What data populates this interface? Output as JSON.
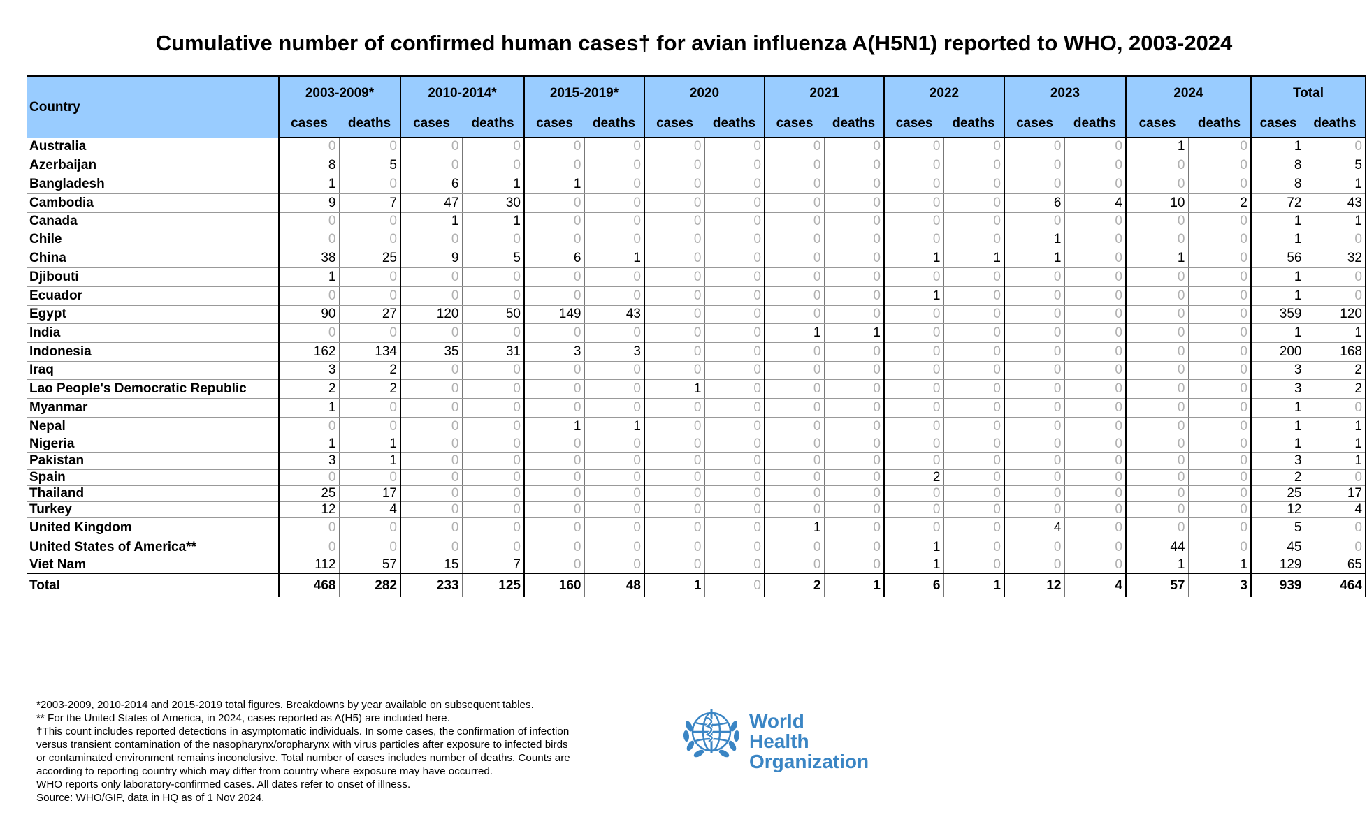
{
  "title": "Cumulative number of confirmed human cases† for avian influenza A(H5N1) reported to WHO, 2003-2024",
  "table": {
    "country_header": "Country",
    "periods": [
      "2003-2009*",
      "2010-2014*",
      "2015-2019*",
      "2020",
      "2021",
      "2022",
      "2023",
      "2024",
      "Total"
    ],
    "cases_label": "cases",
    "deaths_label": "deaths",
    "rows": [
      {
        "country": "Australia",
        "values": [
          0,
          0,
          0,
          0,
          0,
          0,
          0,
          0,
          0,
          0,
          0,
          0,
          0,
          0,
          1,
          0,
          1,
          0
        ]
      },
      {
        "country": "Azerbaijan",
        "values": [
          8,
          5,
          0,
          0,
          0,
          0,
          0,
          0,
          0,
          0,
          0,
          0,
          0,
          0,
          0,
          0,
          8,
          5
        ]
      },
      {
        "country": "Bangladesh",
        "values": [
          1,
          0,
          6,
          1,
          1,
          0,
          0,
          0,
          0,
          0,
          0,
          0,
          0,
          0,
          0,
          0,
          8,
          1
        ]
      },
      {
        "country": "Cambodia",
        "values": [
          9,
          7,
          47,
          30,
          0,
          0,
          0,
          0,
          0,
          0,
          0,
          0,
          6,
          4,
          10,
          2,
          72,
          43
        ]
      },
      {
        "country": "Canada",
        "values": [
          0,
          0,
          1,
          1,
          0,
          0,
          0,
          0,
          0,
          0,
          0,
          0,
          0,
          0,
          0,
          0,
          1,
          1
        ]
      },
      {
        "country": "Chile",
        "values": [
          0,
          0,
          0,
          0,
          0,
          0,
          0,
          0,
          0,
          0,
          0,
          0,
          1,
          0,
          0,
          0,
          1,
          0
        ]
      },
      {
        "country": "China",
        "values": [
          38,
          25,
          9,
          5,
          6,
          1,
          0,
          0,
          0,
          0,
          1,
          1,
          1,
          0,
          1,
          0,
          56,
          32
        ]
      },
      {
        "country": "Djibouti",
        "values": [
          1,
          0,
          0,
          0,
          0,
          0,
          0,
          0,
          0,
          0,
          0,
          0,
          0,
          0,
          0,
          0,
          1,
          0
        ]
      },
      {
        "country": "Ecuador",
        "values": [
          0,
          0,
          0,
          0,
          0,
          0,
          0,
          0,
          0,
          0,
          1,
          0,
          0,
          0,
          0,
          0,
          1,
          0
        ]
      },
      {
        "country": "Egypt",
        "values": [
          90,
          27,
          120,
          50,
          149,
          43,
          0,
          0,
          0,
          0,
          0,
          0,
          0,
          0,
          0,
          0,
          359,
          120
        ]
      },
      {
        "country": "India",
        "values": [
          0,
          0,
          0,
          0,
          0,
          0,
          0,
          0,
          1,
          1,
          0,
          0,
          0,
          0,
          0,
          0,
          1,
          1
        ]
      },
      {
        "country": "Indonesia",
        "values": [
          162,
          134,
          35,
          31,
          3,
          3,
          0,
          0,
          0,
          0,
          0,
          0,
          0,
          0,
          0,
          0,
          200,
          168
        ]
      },
      {
        "country": "Iraq",
        "values": [
          3,
          2,
          0,
          0,
          0,
          0,
          0,
          0,
          0,
          0,
          0,
          0,
          0,
          0,
          0,
          0,
          3,
          2
        ]
      },
      {
        "country": "Lao People's Democratic Republic",
        "values": [
          2,
          2,
          0,
          0,
          0,
          0,
          1,
          0,
          0,
          0,
          0,
          0,
          0,
          0,
          0,
          0,
          3,
          2
        ]
      },
      {
        "country": "Myanmar",
        "values": [
          1,
          0,
          0,
          0,
          0,
          0,
          0,
          0,
          0,
          0,
          0,
          0,
          0,
          0,
          0,
          0,
          1,
          0
        ]
      },
      {
        "country": "Nepal",
        "values": [
          0,
          0,
          0,
          0,
          1,
          1,
          0,
          0,
          0,
          0,
          0,
          0,
          0,
          0,
          0,
          0,
          1,
          1
        ]
      },
      {
        "country": "Nigeria",
        "values": [
          1,
          1,
          0,
          0,
          0,
          0,
          0,
          0,
          0,
          0,
          0,
          0,
          0,
          0,
          0,
          0,
          1,
          1
        ]
      },
      {
        "country": "Pakistan",
        "values": [
          3,
          1,
          0,
          0,
          0,
          0,
          0,
          0,
          0,
          0,
          0,
          0,
          0,
          0,
          0,
          0,
          3,
          1
        ]
      },
      {
        "country": "Spain",
        "values": [
          0,
          0,
          0,
          0,
          0,
          0,
          0,
          0,
          0,
          0,
          2,
          0,
          0,
          0,
          0,
          0,
          2,
          0
        ]
      },
      {
        "country": "Thailand",
        "values": [
          25,
          17,
          0,
          0,
          0,
          0,
          0,
          0,
          0,
          0,
          0,
          0,
          0,
          0,
          0,
          0,
          25,
          17
        ]
      },
      {
        "country": "Turkey",
        "values": [
          12,
          4,
          0,
          0,
          0,
          0,
          0,
          0,
          0,
          0,
          0,
          0,
          0,
          0,
          0,
          0,
          12,
          4
        ]
      },
      {
        "country": "United Kingdom",
        "values": [
          0,
          0,
          0,
          0,
          0,
          0,
          0,
          0,
          1,
          0,
          0,
          0,
          4,
          0,
          0,
          0,
          5,
          0
        ]
      },
      {
        "country": "United States of America**",
        "values": [
          0,
          0,
          0,
          0,
          0,
          0,
          0,
          0,
          0,
          0,
          1,
          0,
          0,
          0,
          44,
          0,
          45,
          0
        ]
      },
      {
        "country": "Viet Nam",
        "values": [
          112,
          57,
          15,
          7,
          0,
          0,
          0,
          0,
          0,
          0,
          1,
          0,
          0,
          0,
          1,
          1,
          129,
          65
        ]
      }
    ],
    "total": {
      "country": "Total",
      "values": [
        468,
        282,
        233,
        125,
        160,
        48,
        1,
        0,
        2,
        1,
        6,
        1,
        12,
        4,
        57,
        3,
        939,
        464
      ]
    }
  },
  "notes": [
    "*2003-2009, 2010-2014 and 2015-2019 total figures. Breakdowns by year available on subsequent tables.",
    "** For the United States of America, in 2024, cases reported as A(H5) are included here.",
    "†This count includes reported detections in asymptomatic individuals. In some cases, the confirmation of infection",
    "versus transient contamination of the nasopharynx/oropharynx with virus particles after exposure to infected birds",
    "or contaminated environment remains inconclusive. Total number of cases includes number of deaths. Counts are",
    "according to reporting country which may differ from country where exposure may have occurred.",
    "WHO reports only laboratory-confirmed cases. All dates refer to onset of illness.",
    "Source: WHO/GIP, data in HQ as of 1 Nov 2024."
  ],
  "logo": {
    "line1": "World Health",
    "line2": "Organization",
    "color": "#3a85c4"
  },
  "colors": {
    "header_bg": "#99ccff",
    "zero_text": "#b0b0b0"
  }
}
